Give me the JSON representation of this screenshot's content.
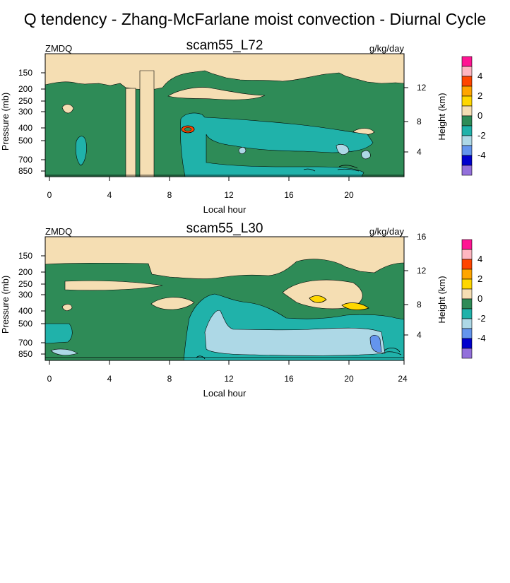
{
  "title": "Q tendency - Zhang-McFarlane moist convection - Diurnal Cycle",
  "colors": {
    "plot_border": "#000000",
    "contour_line": "#000000"
  },
  "chart_data": [
    {
      "type": "contour",
      "title": "scam55_L72",
      "left_label": "ZMDQ",
      "units": "g/kg/day",
      "xlabel": "Local hour",
      "ylabel": "Pressure (mb)",
      "right_ylabel": "Height (km)",
      "xlim": [
        0,
        24
      ],
      "x_ticks": [
        "0",
        "4",
        "8",
        "12",
        "16",
        "20"
      ],
      "y_ticks_pressure": [
        "150",
        "200",
        "250",
        "300",
        "400",
        "500",
        "700",
        "850"
      ],
      "y_ticks_height": [
        "12",
        "8",
        "4"
      ],
      "colorbar": {
        "labels": [
          "4",
          "2",
          "0",
          "-2",
          "-4"
        ],
        "levels": [
          {
            "lower": 5,
            "color": "#ff1493"
          },
          {
            "lower": 4,
            "color": "#ffb6c1"
          },
          {
            "lower": 3,
            "color": "#ff4500"
          },
          {
            "lower": 2,
            "color": "#ffa500"
          },
          {
            "lower": 1,
            "color": "#ffd700"
          },
          {
            "lower": 0,
            "color": "#f5deb3"
          },
          {
            "lower": -1,
            "color": "#2e8b57"
          },
          {
            "lower": -2,
            "color": "#20b2aa"
          },
          {
            "lower": -3,
            "color": "#add8e6"
          },
          {
            "lower": -4,
            "color": "#6495ed"
          },
          {
            "lower": -5,
            "color": "#0000cd"
          },
          {
            "lower": -6,
            "color": "#9370db"
          }
        ]
      }
    },
    {
      "type": "contour",
      "title": "scam55_L30",
      "left_label": "ZMDQ",
      "units": "g/kg/day",
      "xlabel": "Local hour",
      "ylabel": "Pressure (mb)",
      "right_ylabel": "Height (km)",
      "xlim": [
        0,
        24
      ],
      "x_ticks": [
        "0",
        "4",
        "8",
        "12",
        "16",
        "20",
        "24"
      ],
      "y_ticks_pressure": [
        "150",
        "200",
        "250",
        "300",
        "400",
        "500",
        "700",
        "850"
      ],
      "y_ticks_height": [
        "16",
        "12",
        "8",
        "4"
      ],
      "colorbar": {
        "labels": [
          "4",
          "2",
          "0",
          "-2",
          "-4"
        ],
        "levels": [
          {
            "lower": 5,
            "color": "#ff1493"
          },
          {
            "lower": 4,
            "color": "#ffb6c1"
          },
          {
            "lower": 3,
            "color": "#ff4500"
          },
          {
            "lower": 2,
            "color": "#ffa500"
          },
          {
            "lower": 1,
            "color": "#ffd700"
          },
          {
            "lower": 0,
            "color": "#f5deb3"
          },
          {
            "lower": -1,
            "color": "#2e8b57"
          },
          {
            "lower": -2,
            "color": "#20b2aa"
          },
          {
            "lower": -3,
            "color": "#add8e6"
          },
          {
            "lower": -4,
            "color": "#6495ed"
          },
          {
            "lower": -5,
            "color": "#0000cd"
          },
          {
            "lower": -6,
            "color": "#9370db"
          }
        ]
      }
    }
  ]
}
